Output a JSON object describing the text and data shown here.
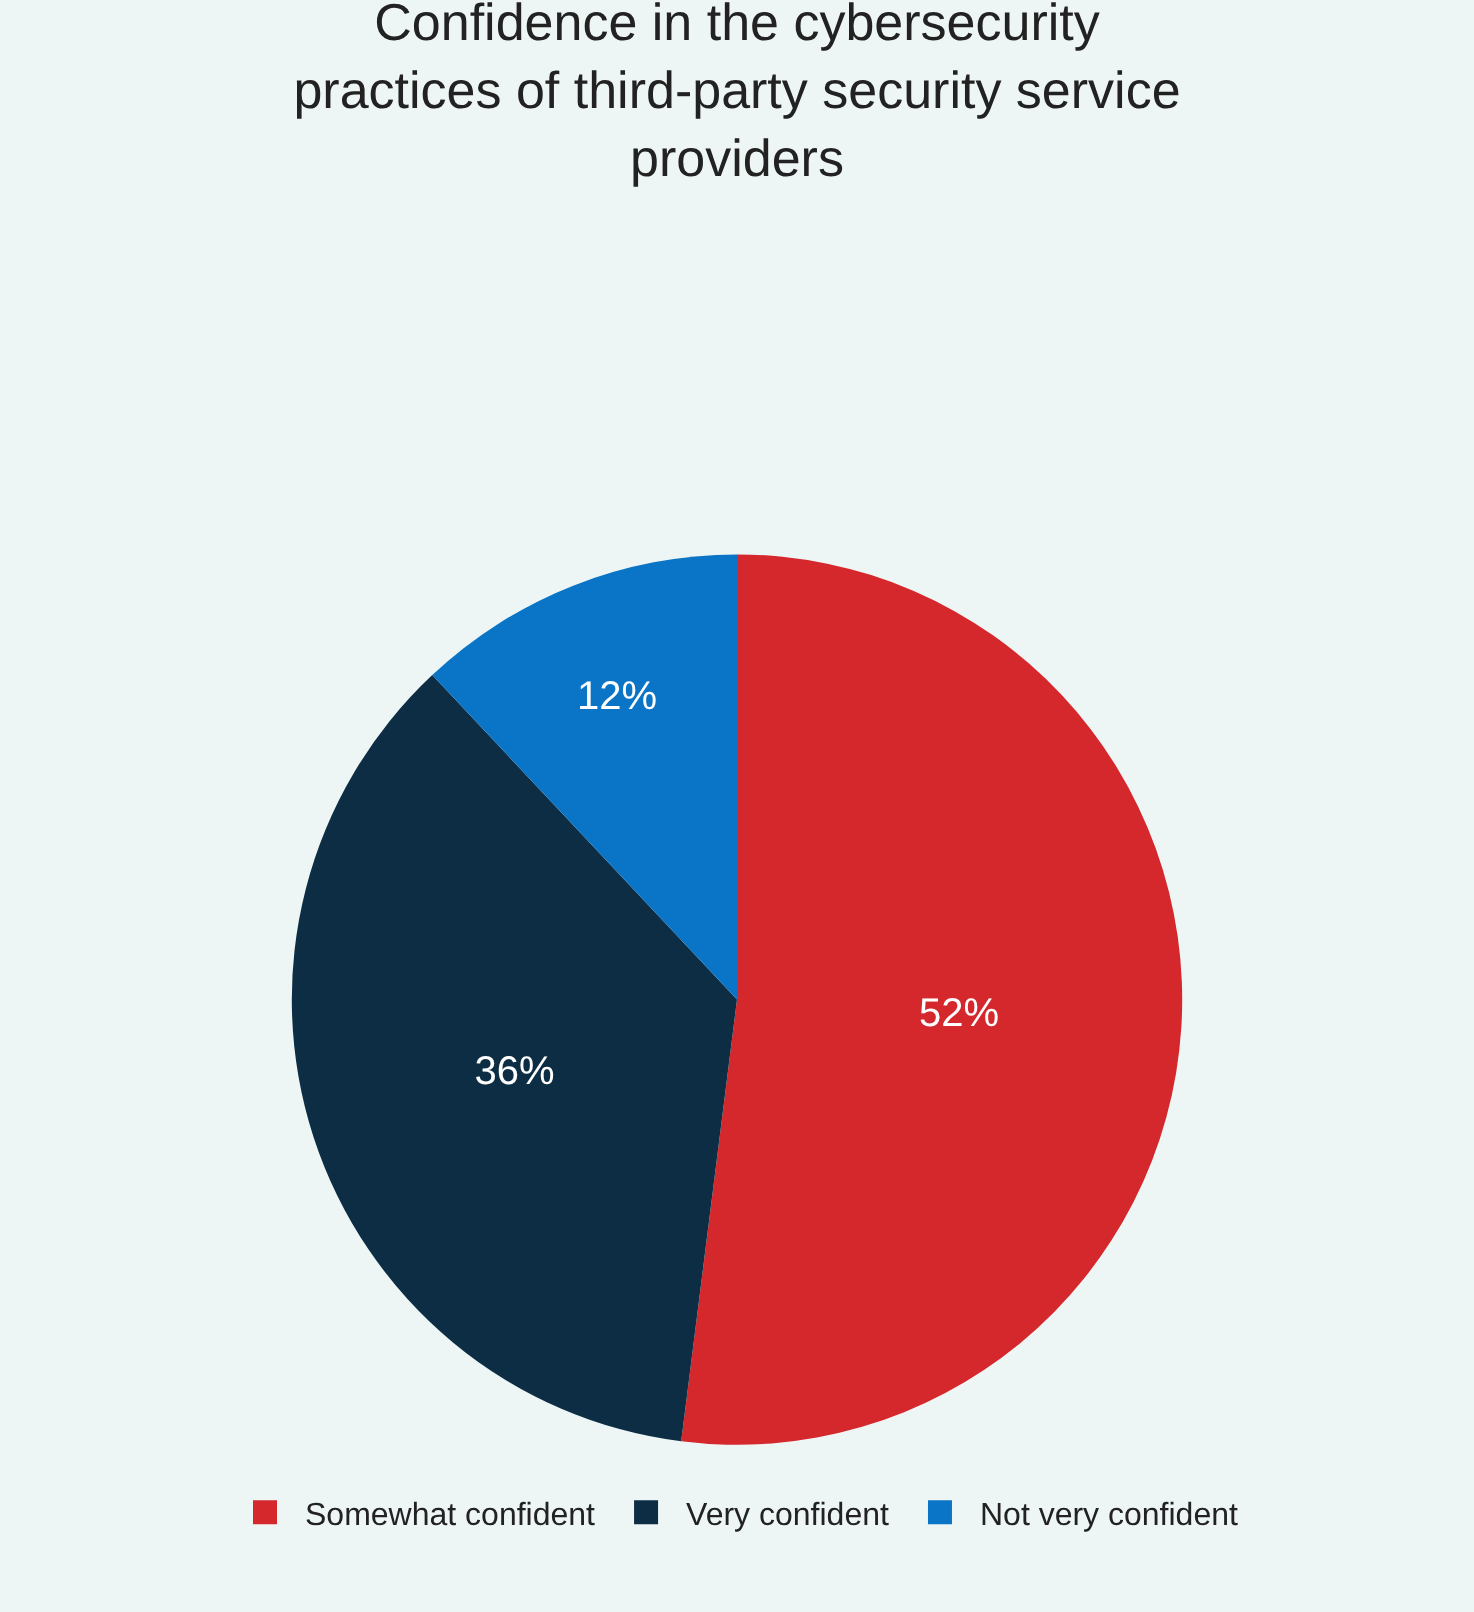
{
  "chart_data": {
    "type": "pie",
    "title": "Confidence in the cybersecurity\npractices of third-party security service\nproviders",
    "categories": [
      "Somewhat confident",
      "Very confident",
      "Not very confident"
    ],
    "values": [
      52,
      36,
      12
    ],
    "value_labels": [
      "52%",
      "36%",
      "12%"
    ],
    "colors": [
      "#d4282c",
      "#0c2d44",
      "#0a74c6"
    ],
    "legend": "bottom"
  }
}
